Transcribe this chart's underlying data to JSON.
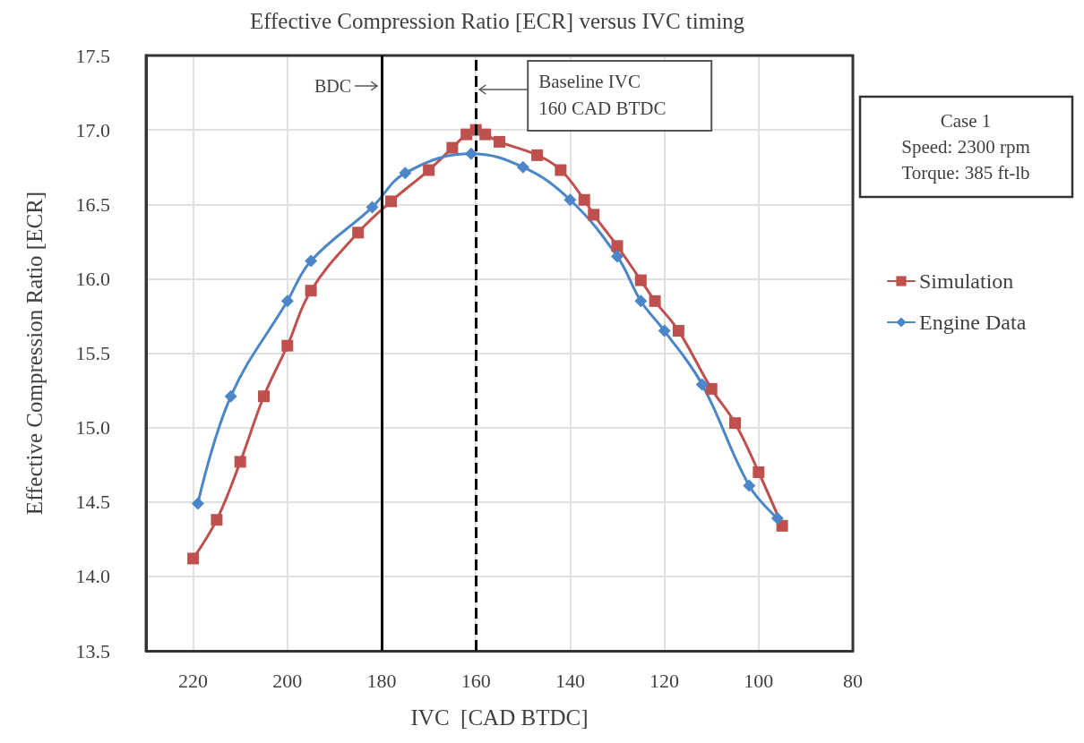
{
  "chart_data": {
    "type": "line",
    "title": "Effective Compression Ratio [ECR] versus IVC timing",
    "xlabel": "IVC  [CAD BTDC]",
    "ylabel": "Effective Compression Ratio [ECR]",
    "xlim": [
      230,
      80
    ],
    "xticks": [
      {
        "value": 230,
        "label": null
      },
      220,
      200,
      180,
      160,
      140,
      120,
      100,
      80
    ],
    "ylim": [
      13.5,
      17.5
    ],
    "yticks": [
      13.5,
      {
        "value": 14,
        "label": "14.0"
      },
      14.5,
      {
        "value": 15,
        "label": "15.0"
      },
      15.5,
      {
        "value": 16,
        "label": "16.0"
      },
      16.5,
      {
        "value": 17,
        "label": "17.0"
      },
      17.5
    ],
    "grid": true,
    "legend": "right",
    "series": [
      {
        "name": "Simulation",
        "color": "#c0504d",
        "marker": "square",
        "x": [
          220,
          215,
          210,
          205,
          200,
          195,
          185,
          178,
          170,
          165,
          162,
          160,
          158,
          155,
          147,
          142,
          137,
          135,
          130,
          125,
          122,
          117,
          110,
          105,
          100,
          95
        ],
        "values": [
          14.12,
          14.38,
          14.77,
          15.21,
          15.55,
          15.92,
          16.31,
          16.52,
          16.73,
          16.88,
          16.97,
          17.0,
          16.97,
          16.92,
          16.83,
          16.73,
          16.53,
          16.43,
          16.22,
          15.99,
          15.85,
          15.65,
          15.26,
          15.03,
          14.7,
          14.34
        ]
      },
      {
        "name": "Engine Data",
        "color": "#4a86c8",
        "marker": "diamond",
        "x": [
          219,
          212,
          200,
          195,
          182,
          175,
          161,
          150,
          140,
          130,
          125,
          120,
          112,
          102,
          96
        ],
        "values": [
          14.49,
          15.21,
          15.85,
          16.12,
          16.48,
          16.71,
          16.84,
          16.75,
          16.53,
          16.15,
          15.85,
          15.65,
          15.29,
          14.61,
          14.39
        ]
      }
    ],
    "ref_lines": [
      {
        "axis": "x",
        "value": 180,
        "label": "BDC",
        "color": "#000000",
        "line_style": "solid"
      },
      {
        "axis": "x",
        "value": 160,
        "label": "Baseline IVC\n160 CAD BTDC",
        "color": "#000000",
        "line_style": "dashed"
      }
    ],
    "annotations": [
      "Case 1\nSpeed: 2300 rpm\nTorque: 385 ft-lb"
    ]
  }
}
